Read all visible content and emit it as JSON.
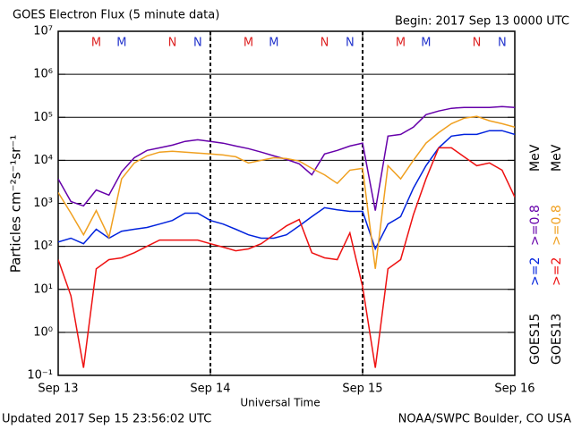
{
  "chart_data": {
    "type": "line",
    "title": "GOES Electron Flux (5 minute data)",
    "subtitle": "Begin: 2017 Sep 13 0000 UTC",
    "x_label": "Universal Time",
    "y_label": "Particles cm⁻²s⁻¹sr⁻¹",
    "footer_left": "Updated 2017 Sep 15 23:56:02 UTC",
    "footer_right": "NOAA/SWPC Boulder, CO USA",
    "log_y": true,
    "grid": true,
    "dashed_y": 1000,
    "xlim": [
      0,
      72
    ],
    "xticks": [
      {
        "value": 0,
        "label": "Sep 13"
      },
      {
        "value": 24,
        "label": "Sep 14"
      },
      {
        "value": 48,
        "label": "Sep 15"
      },
      {
        "value": 72,
        "label": "Sep 16"
      }
    ],
    "ylim": [
      0.1,
      10000000
    ],
    "yticks": [
      {
        "value": 0.1,
        "label": "10⁻¹"
      },
      {
        "value": 1,
        "label": "10⁰"
      },
      {
        "value": 10,
        "label": "10¹"
      },
      {
        "value": 100,
        "label": "10²"
      },
      {
        "value": 1000,
        "label": "10³"
      },
      {
        "value": 10000,
        "label": "10⁴"
      },
      {
        "value": 100000,
        "label": "10⁵"
      },
      {
        "value": 1000000,
        "label": "10⁶"
      },
      {
        "value": 10000000,
        "label": "10⁷"
      }
    ],
    "legend_groups": [
      {
        "label": "GOES15",
        "unit": "MeV"
      },
      {
        "label": "GOES13",
        "unit": "MeV"
      }
    ],
    "markers": [
      {
        "label": "M",
        "color": "#dd2222",
        "x": 6
      },
      {
        "label": "M",
        "color": "#2233cc",
        "x": 10
      },
      {
        "label": "N",
        "color": "#dd2222",
        "x": 18
      },
      {
        "label": "N",
        "color": "#2233cc",
        "x": 22
      },
      {
        "label": "M",
        "color": "#dd2222",
        "x": 30
      },
      {
        "label": "M",
        "color": "#2233cc",
        "x": 34
      },
      {
        "label": "N",
        "color": "#dd2222",
        "x": 42
      },
      {
        "label": "N",
        "color": "#2233cc",
        "x": 46
      },
      {
        "label": "M",
        "color": "#dd2222",
        "x": 54
      },
      {
        "label": "M",
        "color": "#2233cc",
        "x": 58
      },
      {
        "label": "N",
        "color": "#dd2222",
        "x": 66
      },
      {
        "label": "N",
        "color": "#2233cc",
        "x": 70
      }
    ],
    "x": [
      0,
      2,
      4,
      6,
      8,
      10,
      12,
      14,
      16,
      18,
      20,
      22,
      24,
      26,
      28,
      30,
      32,
      34,
      36,
      38,
      40,
      42,
      44,
      46,
      48,
      50,
      52,
      54,
      56,
      58,
      60,
      62,
      64,
      66,
      68,
      70,
      72
    ],
    "series": [
      {
        "name": ">=2",
        "color": "#0022dd",
        "values": [
          126,
          155,
          115,
          250,
          155,
          225,
          250,
          275,
          330,
          400,
          590,
          590,
          400,
          330,
          250,
          186,
          155,
          155,
          186,
          300,
          490,
          790,
          710,
          650,
          650,
          87,
          330,
          490,
          2250,
          7500,
          19500,
          36500,
          40000,
          40000,
          49000,
          49000,
          40000
        ]
      },
      {
        "name": ">=0.8",
        "color": "#6600aa",
        "values": [
          3700,
          1100,
          870,
          2050,
          1550,
          5400,
          11500,
          17000,
          19500,
          22500,
          27500,
          30000,
          27500,
          25000,
          21500,
          18700,
          15500,
          12700,
          10500,
          8300,
          4600,
          14000,
          17000,
          21500,
          25000,
          680,
          36500,
          40000,
          59000,
          115000,
          140000,
          162000,
          170000,
          170000,
          170000,
          178000,
          170000
        ]
      },
      {
        "name": ">=2",
        "color": "#ee1111",
        "values": [
          49,
          7.1,
          0.15,
          30,
          49,
          54,
          71,
          100,
          140,
          140,
          140,
          140,
          115,
          96,
          79,
          87,
          115,
          186,
          300,
          420,
          71,
          54,
          49,
          205,
          11.5,
          0.15,
          30,
          49,
          540,
          3700,
          19500,
          19500,
          12100,
          7500,
          8700,
          5900,
          1400
        ]
      },
      {
        "name": ">=0.8",
        "color": "#f0a020",
        "values": [
          1780,
          590,
          186,
          680,
          162,
          3700,
          8700,
          12700,
          15500,
          16200,
          15500,
          14700,
          14000,
          13300,
          12100,
          8700,
          10000,
          11500,
          11000,
          9600,
          6500,
          4600,
          2900,
          5900,
          6500,
          30,
          7500,
          3700,
          10000,
          25000,
          44000,
          71000,
          95000,
          105000,
          83000,
          71000,
          59000
        ]
      }
    ]
  }
}
